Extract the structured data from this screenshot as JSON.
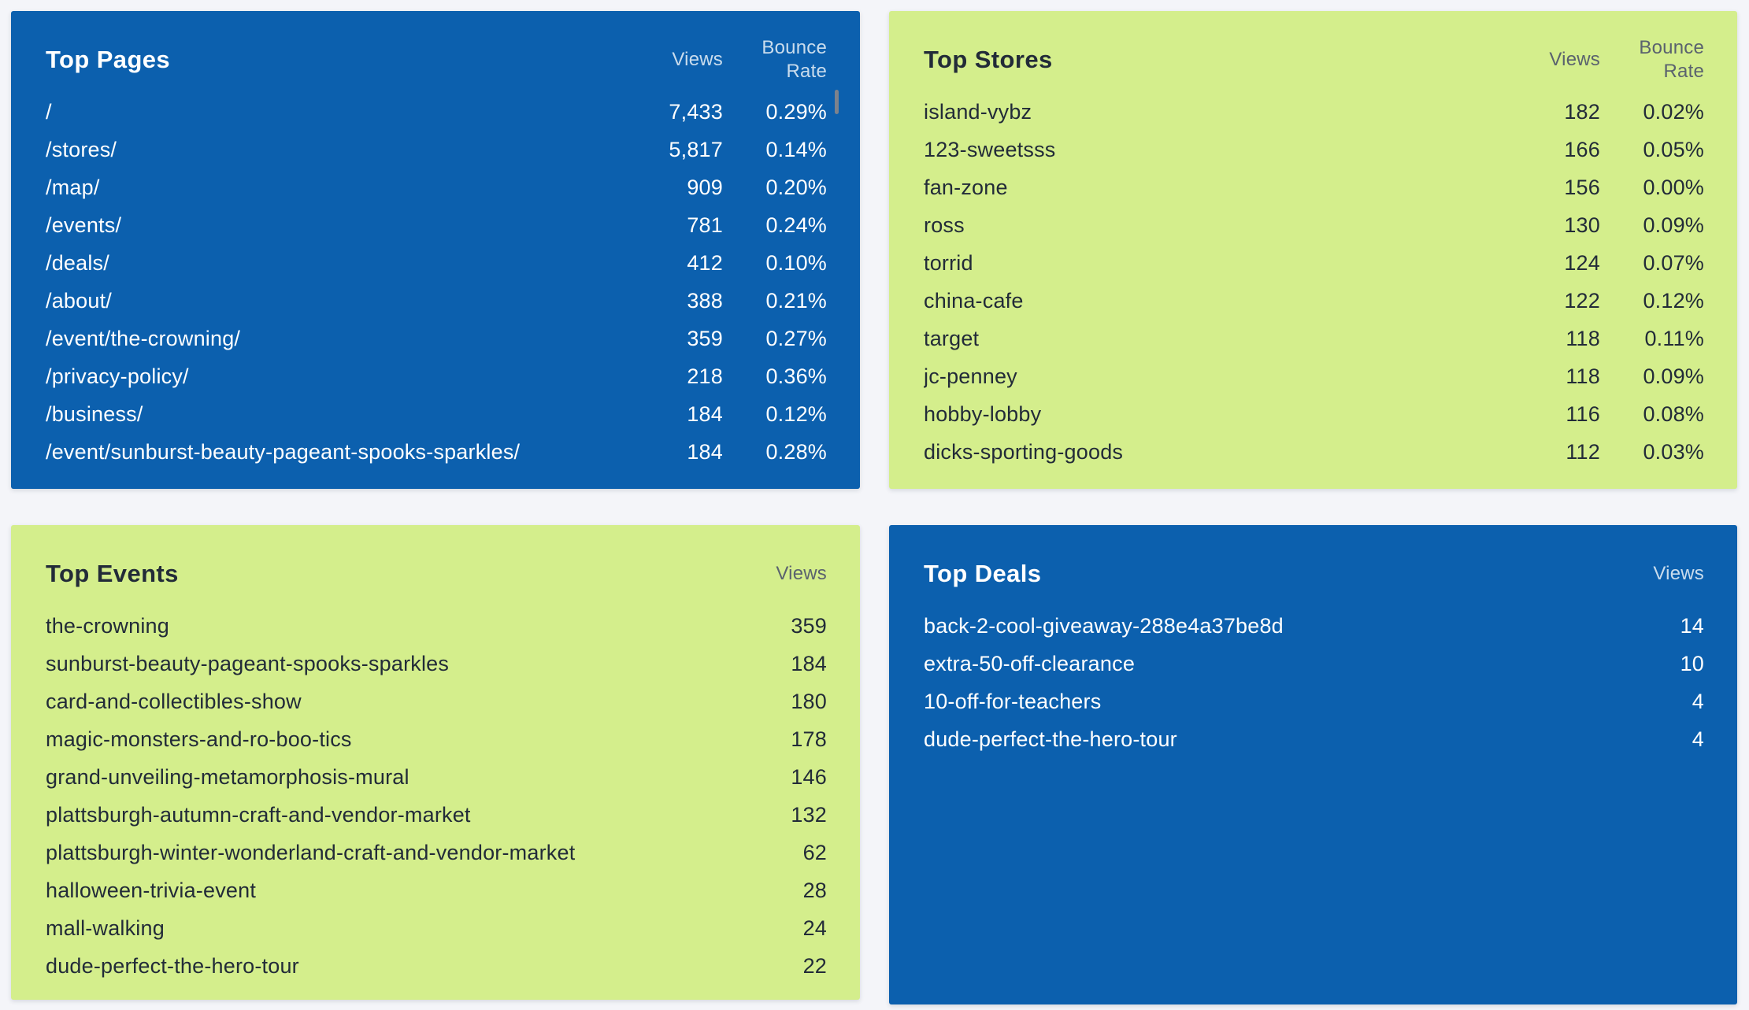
{
  "page": {
    "background_color": "#f4f5f9"
  },
  "colors": {
    "blue_panel": "#0c60ae",
    "green_panel": "#d4ee8c",
    "dark_text": "#222b38",
    "white_text": "#ffffff",
    "blue_header_text": "rgba(255,255,255,0.78)",
    "green_header_text": "#5a626e",
    "scrollbar_thumb": "#7d828c"
  },
  "panels": [
    {
      "id": "top-pages",
      "title": "Top Pages",
      "theme": "blue",
      "background": "#0c60ae",
      "views_label": "Views",
      "bounce_label": "Bounce Rate",
      "rows": [
        {
          "name": "/",
          "views": "7,433",
          "bounce": "0.29%"
        },
        {
          "name": "/stores/",
          "views": "5,817",
          "bounce": "0.14%"
        },
        {
          "name": "/map/",
          "views": "909",
          "bounce": "0.20%"
        },
        {
          "name": "/events/",
          "views": "781",
          "bounce": "0.24%"
        },
        {
          "name": "/deals/",
          "views": "412",
          "bounce": "0.10%"
        },
        {
          "name": "/about/",
          "views": "388",
          "bounce": "0.21%"
        },
        {
          "name": "/event/the-crowning/",
          "views": "359",
          "bounce": "0.27%"
        },
        {
          "name": "/privacy-policy/",
          "views": "218",
          "bounce": "0.36%"
        },
        {
          "name": "/business/",
          "views": "184",
          "bounce": "0.12%"
        },
        {
          "name": "/event/sunburst-beauty-pageant-spooks-sparkles/",
          "views": "184",
          "bounce": "0.28%"
        }
      ]
    },
    {
      "id": "top-stores",
      "title": "Top Stores",
      "theme": "green",
      "background": "#d4ee8c",
      "views_label": "Views",
      "bounce_label": "Bounce Rate",
      "rows": [
        {
          "name": "island-vybz",
          "views": "182",
          "bounce": "0.02%"
        },
        {
          "name": "123-sweetsss",
          "views": "166",
          "bounce": "0.05%"
        },
        {
          "name": "fan-zone",
          "views": "156",
          "bounce": "0.00%"
        },
        {
          "name": "ross",
          "views": "130",
          "bounce": "0.09%"
        },
        {
          "name": "torrid",
          "views": "124",
          "bounce": "0.07%"
        },
        {
          "name": "china-cafe",
          "views": "122",
          "bounce": "0.12%"
        },
        {
          "name": "target",
          "views": "118",
          "bounce": "0.11%"
        },
        {
          "name": "jc-penney",
          "views": "118",
          "bounce": "0.09%"
        },
        {
          "name": "hobby-lobby",
          "views": "116",
          "bounce": "0.08%"
        },
        {
          "name": "dicks-sporting-goods",
          "views": "112",
          "bounce": "0.03%"
        }
      ]
    },
    {
      "id": "top-events",
      "title": "Top Events",
      "theme": "green",
      "background": "#d4ee8c",
      "views_label": "Views",
      "rows": [
        {
          "name": "the-crowning",
          "views": "359"
        },
        {
          "name": "sunburst-beauty-pageant-spooks-sparkles",
          "views": "184"
        },
        {
          "name": "card-and-collectibles-show",
          "views": "180"
        },
        {
          "name": "magic-monsters-and-ro-boo-tics",
          "views": "178"
        },
        {
          "name": "grand-unveiling-metamorphosis-mural",
          "views": "146"
        },
        {
          "name": "plattsburgh-autumn-craft-and-vendor-market",
          "views": "132"
        },
        {
          "name": "plattsburgh-winter-wonderland-craft-and-vendor-market",
          "views": "62"
        },
        {
          "name": "halloween-trivia-event",
          "views": "28"
        },
        {
          "name": "mall-walking",
          "views": "24"
        },
        {
          "name": "dude-perfect-the-hero-tour",
          "views": "22"
        }
      ]
    },
    {
      "id": "top-deals",
      "title": "Top Deals",
      "theme": "blue",
      "background": "#0c60ae",
      "views_label": "Views",
      "rows": [
        {
          "name": "back-2-cool-giveaway-288e4a37be8d",
          "views": "14"
        },
        {
          "name": "extra-50-off-clearance",
          "views": "10"
        },
        {
          "name": "10-off-for-teachers",
          "views": "4"
        },
        {
          "name": "dude-perfect-the-hero-tour",
          "views": "4"
        }
      ]
    }
  ]
}
